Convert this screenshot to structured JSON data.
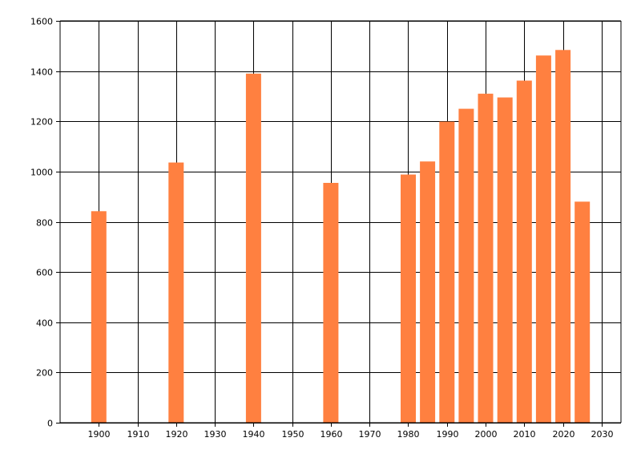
{
  "chart_data": {
    "type": "bar",
    "title": "",
    "xlabel": "",
    "ylabel": "",
    "x": [
      1900,
      1920,
      1940,
      1960,
      1980,
      1985,
      1990,
      1995,
      2000,
      2005,
      2010,
      2015,
      2020,
      2025
    ],
    "values": [
      842,
      1036,
      1390,
      955,
      988,
      1040,
      1199,
      1250,
      1310,
      1295,
      1362,
      1462,
      1484,
      880
    ],
    "xlim": [
      1890,
      2035
    ],
    "ylim": [
      0,
      1600
    ],
    "x_ticks": [
      1900,
      1910,
      1920,
      1930,
      1940,
      1950,
      1960,
      1970,
      1980,
      1990,
      2000,
      2010,
      2020,
      2030
    ],
    "y_ticks": [
      0,
      200,
      400,
      600,
      800,
      1000,
      1200,
      1400,
      1600
    ],
    "grid": true,
    "bar_color": "#ff8040",
    "grid_color": "#000000"
  }
}
